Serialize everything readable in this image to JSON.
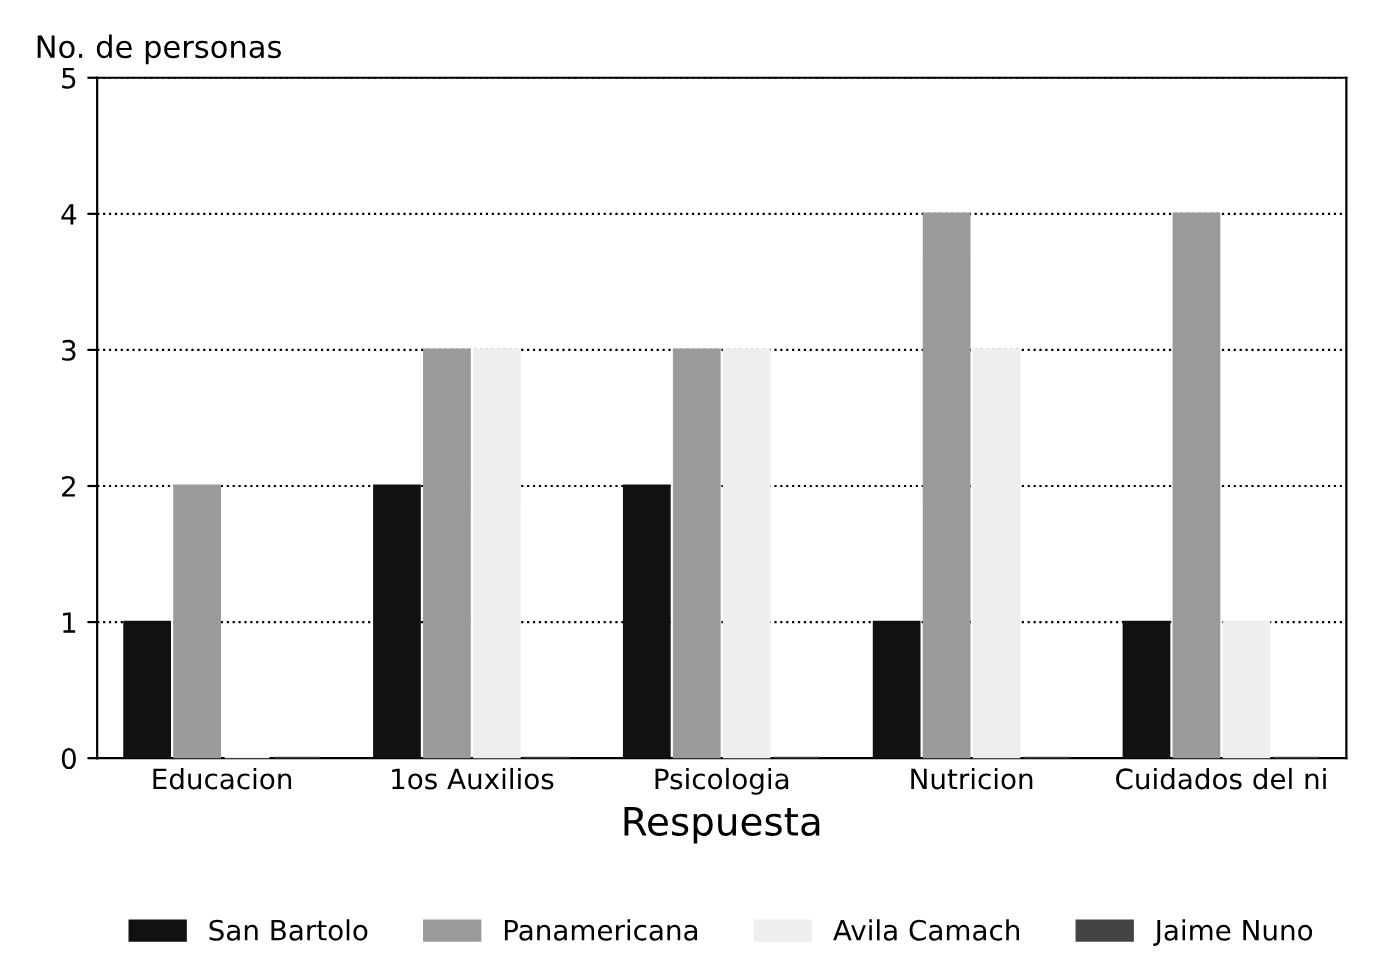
{
  "chart_data": {
    "type": "bar",
    "ylabel": "No. de personas",
    "xlabel": "Respuesta",
    "categories": [
      "Educacion",
      "1os Auxilios",
      "Psicologia",
      "Nutricion",
      "Cuidados del ni"
    ],
    "series": [
      {
        "name": "San Bartolo",
        "color": "#111111",
        "values": [
          1,
          2,
          2,
          1,
          1
        ]
      },
      {
        "name": "Panamericana",
        "color": "#9a9a9a",
        "values": [
          2,
          3,
          3,
          4,
          4
        ]
      },
      {
        "name": "Avila Camach",
        "color": "#eeeeee",
        "values": [
          0,
          3,
          3,
          3,
          1
        ]
      },
      {
        "name": "Jaime Nuno",
        "color": "#444444",
        "values": [
          0,
          0,
          0,
          0,
          0
        ]
      }
    ],
    "ylim": [
      0,
      5
    ],
    "yticks": [
      0,
      1,
      2,
      3,
      4,
      5
    ],
    "grid": "y",
    "legend": "bottom"
  }
}
